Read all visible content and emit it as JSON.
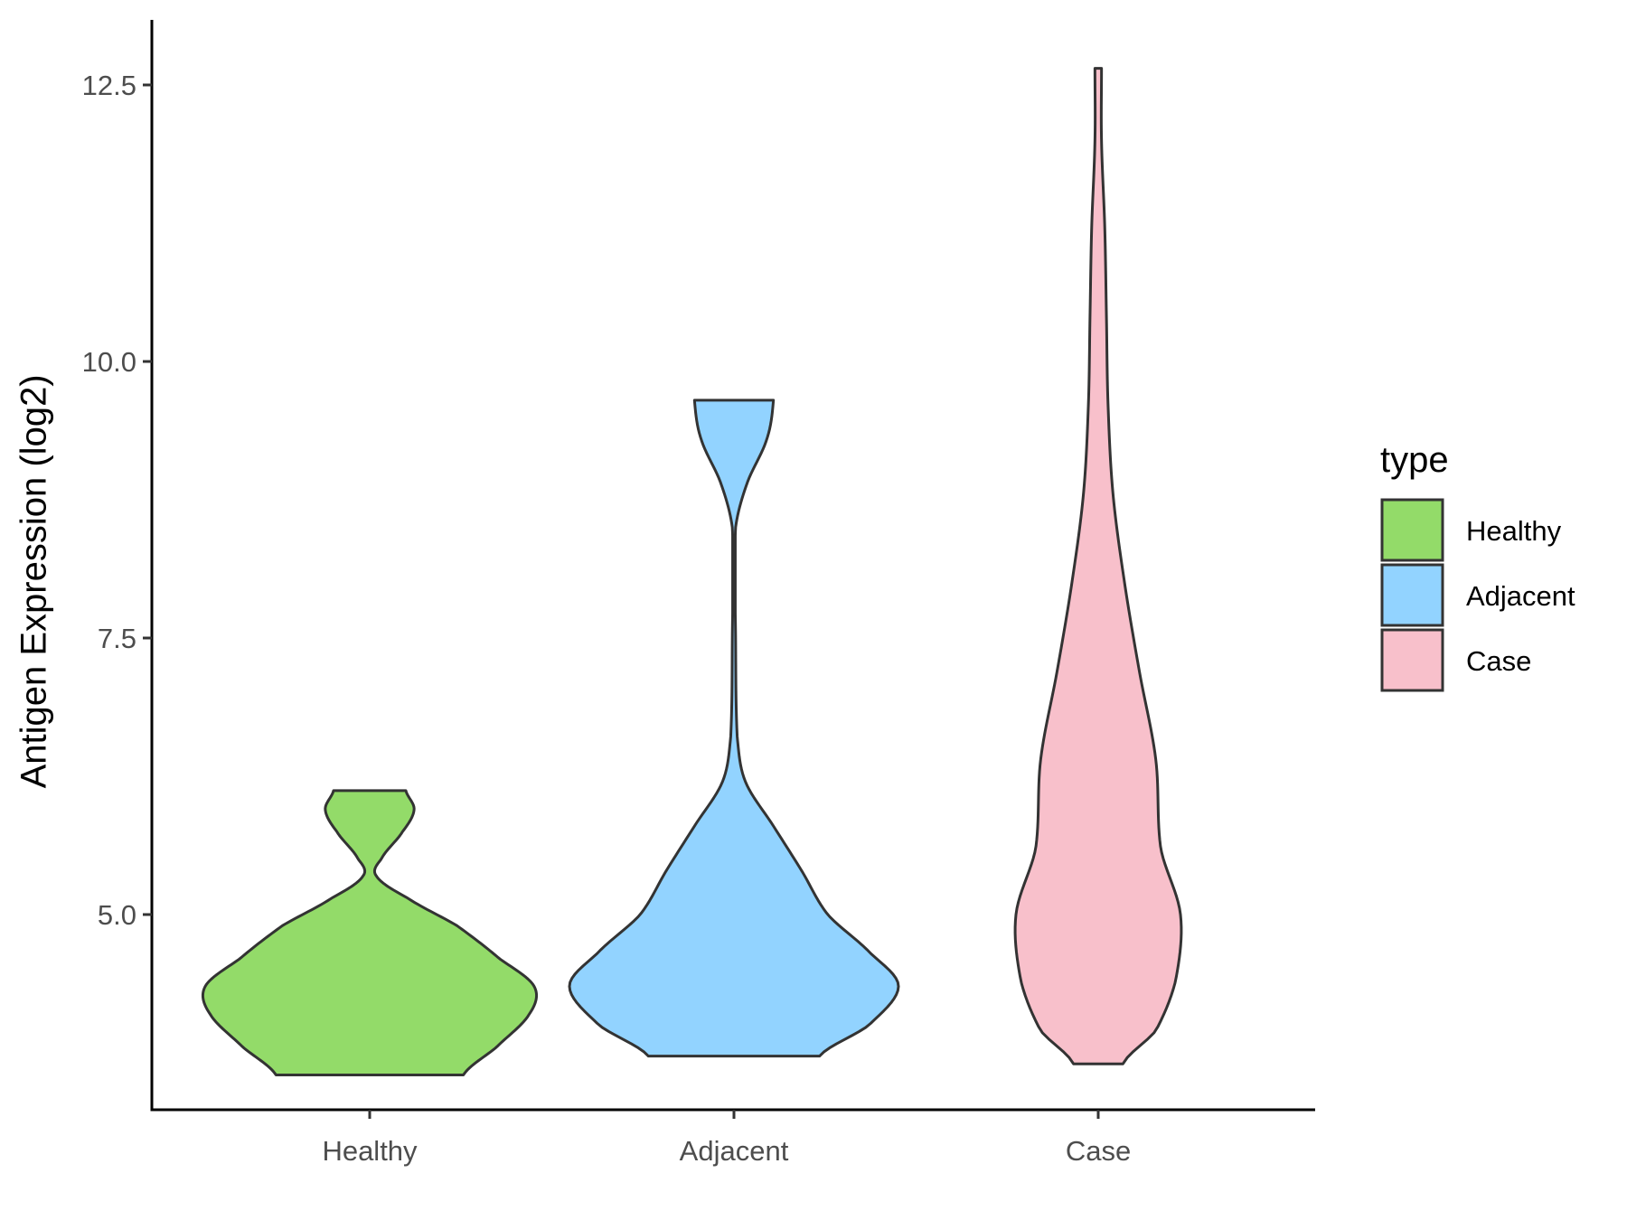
{
  "chart_data": {
    "type": "violin",
    "ylabel": "Antigen Expression (log2)",
    "xlabel": "",
    "categories": [
      "Healthy",
      "Adjacent",
      "Case"
    ],
    "yticks": [
      "5.0",
      "7.5",
      "10.0",
      "12.5"
    ],
    "ytick_values": [
      5.0,
      7.5,
      10.0,
      12.5
    ],
    "ylim": [
      3.25,
      13.1
    ],
    "legend": {
      "title": "type",
      "position": "right",
      "entries": [
        "Healthy",
        "Adjacent",
        "Case"
      ]
    },
    "colors": {
      "Healthy": "#93DB69",
      "Adjacent": "#92D3FF",
      "Case": "#F8C0CB",
      "outline": "#333333"
    },
    "series": [
      {
        "name": "Healthy",
        "min": 3.55,
        "max": 6.12,
        "density_profile": [
          [
            3.55,
            0.57
          ],
          [
            3.8,
            0.77
          ],
          [
            4.1,
            0.97
          ],
          [
            4.35,
            1.0
          ],
          [
            4.6,
            0.79
          ],
          [
            4.9,
            0.53
          ],
          [
            5.15,
            0.23
          ],
          [
            5.35,
            0.04
          ],
          [
            5.5,
            0.07
          ],
          [
            5.75,
            0.2
          ],
          [
            5.95,
            0.27
          ],
          [
            6.12,
            0.22
          ]
        ]
      },
      {
        "name": "Adjacent",
        "min": 3.72,
        "max": 9.65,
        "density_profile": [
          [
            3.72,
            0.52
          ],
          [
            4.0,
            0.82
          ],
          [
            4.35,
            1.0
          ],
          [
            4.65,
            0.83
          ],
          [
            5.0,
            0.57
          ],
          [
            5.4,
            0.41
          ],
          [
            5.8,
            0.24
          ],
          [
            6.2,
            0.07
          ],
          [
            6.6,
            0.02
          ],
          [
            7.5,
            0.01
          ],
          [
            8.5,
            0.01
          ],
          [
            8.9,
            0.08
          ],
          [
            9.3,
            0.2
          ],
          [
            9.65,
            0.24
          ]
        ]
      },
      {
        "name": "Case",
        "min": 3.65,
        "max": 12.65,
        "density_profile": [
          [
            3.65,
            0.15
          ],
          [
            3.95,
            0.35
          ],
          [
            4.4,
            0.47
          ],
          [
            5.0,
            0.5
          ],
          [
            5.6,
            0.38
          ],
          [
            6.4,
            0.35
          ],
          [
            7.2,
            0.25
          ],
          [
            8.0,
            0.16
          ],
          [
            8.8,
            0.09
          ],
          [
            9.6,
            0.06
          ],
          [
            10.4,
            0.05
          ],
          [
            11.2,
            0.04
          ],
          [
            12.0,
            0.02
          ],
          [
            12.65,
            0.02
          ]
        ]
      }
    ]
  }
}
